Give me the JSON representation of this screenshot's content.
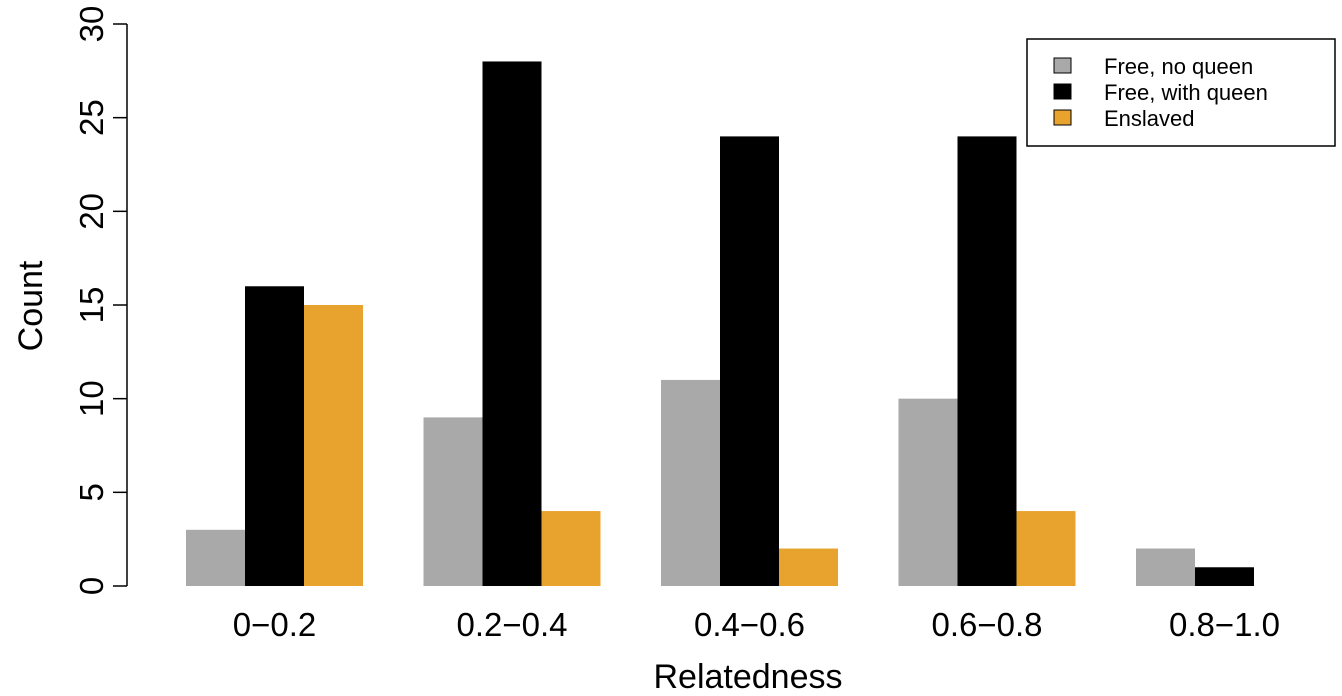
{
  "chart_data": {
    "type": "bar",
    "categories": [
      "0−0.2",
      "0.2−0.4",
      "0.4−0.6",
      "0.6−0.8",
      "0.8−1.0"
    ],
    "series": [
      {
        "name": "Free, no queen",
        "color": "#a9a9a9",
        "values": [
          3,
          9,
          11,
          10,
          2
        ]
      },
      {
        "name": "Free, with queen",
        "color": "#000000",
        "values": [
          16,
          28,
          24,
          24,
          1
        ]
      },
      {
        "name": "Enslaved",
        "color": "#e8a32e",
        "values": [
          15,
          4,
          2,
          4,
          0
        ]
      }
    ],
    "title": "",
    "xlabel": "Relatedness",
    "ylabel": "Count",
    "ylim": [
      0,
      30
    ],
    "yticks": [
      0,
      5,
      10,
      15,
      20,
      25,
      30
    ],
    "grid": false,
    "legend": "top-right"
  }
}
